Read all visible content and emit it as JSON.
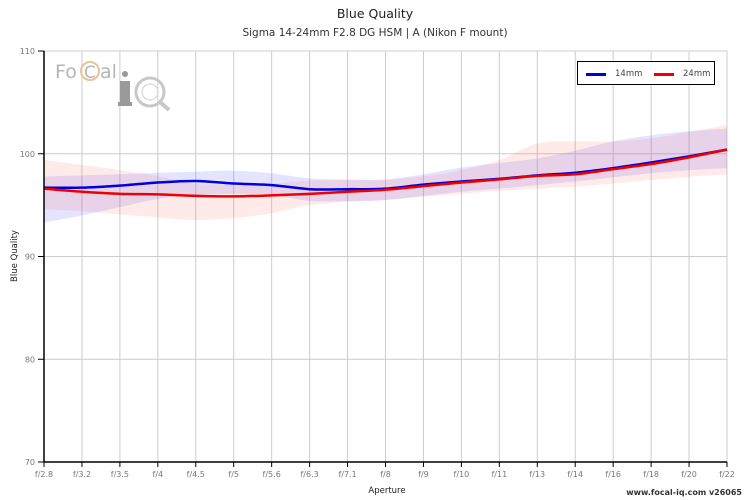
{
  "header": {
    "title": "Blue Quality",
    "subtitle": "Sigma 14-24mm F2.8 DG HSM | A (Nikon F mount)"
  },
  "watermark": {
    "logo_text_left": "Fo",
    "logo_text_c": "C",
    "logo_text_right": "al",
    "logo_iq": "iQ",
    "icon": "magnifier-aperture-icon"
  },
  "legend": {
    "items": [
      {
        "label": "14mm",
        "color": "#0000dd"
      },
      {
        "label": "24mm",
        "color": "#ee0000"
      }
    ]
  },
  "footer": {
    "credit": "www.focal-iq.com  v26065"
  },
  "colors": {
    "series_14mm": "#0000dd",
    "series_24mm": "#ee0000",
    "band_14mm": "rgba(90,90,255,0.16)",
    "band_24mm": "rgba(255,90,90,0.13)",
    "grid": "#cccccc",
    "axis": "#000000"
  },
  "chart_data": {
    "type": "line",
    "title": "Blue Quality",
    "subtitle": "Sigma 14-24mm F2.8 DG HSM | A (Nikon F mount)",
    "xlabel": "Aperture",
    "ylabel": "Blue Quality",
    "ylim": [
      70,
      110
    ],
    "yticks": [
      70,
      80,
      90,
      100,
      110
    ],
    "grid": true,
    "legend_position": "top-right",
    "categories": [
      "f/2.8",
      "f/3.2",
      "f/3.5",
      "f/4",
      "f/4.5",
      "f/5",
      "f/5.6",
      "f/6.3",
      "f/7.1",
      "f/8",
      "f/9",
      "f/10",
      "f/11",
      "f/13",
      "f/14",
      "f/16",
      "f/18",
      "f/20",
      "f/22"
    ],
    "series": [
      {
        "name": "14mm",
        "color": "#0000dd",
        "values": [
          96.7,
          96.7,
          96.9,
          97.2,
          97.35,
          97.1,
          96.95,
          96.55,
          96.55,
          96.6,
          97.0,
          97.3,
          97.55,
          97.9,
          98.15,
          98.6,
          99.15,
          99.75,
          100.4
        ],
        "band_upper": [
          97.8,
          97.9,
          98.0,
          98.15,
          98.25,
          98.35,
          98.1,
          97.6,
          97.5,
          97.5,
          98.0,
          98.65,
          99.1,
          99.55,
          100.3,
          101.2,
          101.8,
          102.2,
          102.45
        ],
        "band_lower": [
          93.3,
          94.0,
          94.8,
          95.6,
          96.0,
          96.1,
          96.0,
          95.4,
          95.4,
          95.5,
          95.9,
          96.3,
          96.6,
          96.95,
          97.3,
          97.7,
          98.1,
          98.4,
          98.6
        ]
      },
      {
        "name": "24mm",
        "color": "#ee0000",
        "values": [
          96.6,
          96.3,
          96.1,
          96.05,
          95.9,
          95.85,
          95.95,
          96.1,
          96.3,
          96.5,
          96.85,
          97.2,
          97.5,
          97.85,
          98.0,
          98.5,
          99.0,
          99.65,
          100.4
        ],
        "band_upper": [
          99.4,
          98.9,
          98.4,
          97.8,
          97.05,
          96.95,
          97.1,
          97.4,
          97.45,
          97.45,
          97.8,
          98.4,
          99.4,
          101.0,
          101.2,
          101.2,
          101.5,
          102.1,
          102.8
        ],
        "band_lower": [
          94.6,
          94.4,
          94.1,
          93.8,
          93.55,
          93.75,
          94.2,
          95.0,
          95.3,
          95.5,
          95.8,
          96.1,
          96.4,
          96.6,
          96.8,
          97.1,
          97.45,
          97.75,
          98.0
        ]
      }
    ]
  }
}
